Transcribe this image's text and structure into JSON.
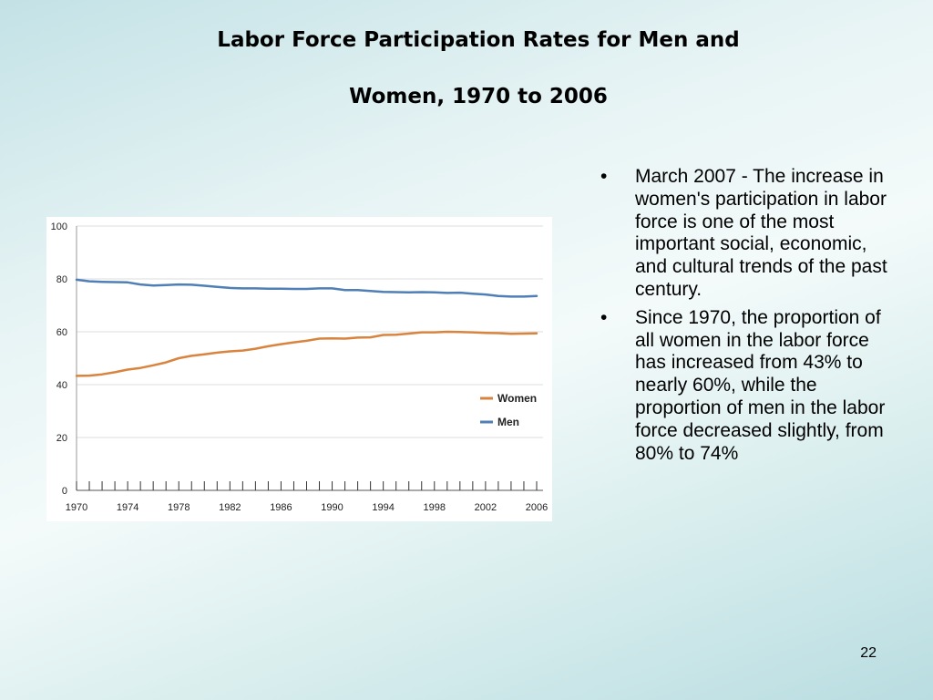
{
  "slide": {
    "title_line1": "Labor Force Participation Rates for Men and",
    "title_line2": "Women, 1970 to 2006",
    "bullets": [
      "March 2007 - The increase in women's participation in labor force is one of the most important social, economic, and cultural trends of the past century.",
      "Since 1970, the proportion of all women in the labor force has increased from 43% to nearly 60%, while the proportion of men in the labor force decreased slightly, from 80% to 74%"
    ],
    "bullet_symbol": "•",
    "page_number": "22"
  },
  "chart_data": {
    "type": "line",
    "title": "",
    "xlabel": "",
    "ylabel": "",
    "x": [
      1970,
      1971,
      1972,
      1973,
      1974,
      1975,
      1976,
      1977,
      1978,
      1979,
      1980,
      1981,
      1982,
      1983,
      1984,
      1985,
      1986,
      1987,
      1988,
      1989,
      1990,
      1991,
      1992,
      1993,
      1994,
      1995,
      1996,
      1997,
      1998,
      1999,
      2000,
      2001,
      2002,
      2003,
      2004,
      2005,
      2006
    ],
    "x_tick_labels": [
      "1970",
      "1974",
      "1978",
      "1982",
      "1986",
      "1990",
      "1994",
      "1998",
      "2002",
      "2006"
    ],
    "x_tick_values": [
      1970,
      1974,
      1978,
      1982,
      1986,
      1990,
      1994,
      1998,
      2002,
      2006
    ],
    "y_ticks": [
      0,
      20,
      40,
      60,
      80,
      100
    ],
    "xlim": [
      1970,
      2006.5
    ],
    "ylim": [
      0,
      100
    ],
    "grid": true,
    "legend_position": "right-middle",
    "series": [
      {
        "name": "Women",
        "color": "#d9843e",
        "values": [
          43.3,
          43.4,
          43.9,
          44.7,
          45.7,
          46.3,
          47.3,
          48.4,
          50.0,
          50.9,
          51.5,
          52.1,
          52.6,
          52.9,
          53.6,
          54.5,
          55.3,
          56.0,
          56.6,
          57.4,
          57.5,
          57.4,
          57.8,
          57.9,
          58.8,
          58.9,
          59.3,
          59.8,
          59.8,
          60.0,
          59.9,
          59.8,
          59.6,
          59.5,
          59.2,
          59.3,
          59.4
        ]
      },
      {
        "name": "Men",
        "color": "#4f7fb5",
        "values": [
          79.7,
          79.1,
          78.9,
          78.8,
          78.7,
          77.9,
          77.5,
          77.7,
          77.9,
          77.8,
          77.4,
          77.0,
          76.6,
          76.4,
          76.4,
          76.3,
          76.3,
          76.2,
          76.2,
          76.4,
          76.4,
          75.8,
          75.8,
          75.4,
          75.1,
          75.0,
          74.9,
          75.0,
          74.9,
          74.7,
          74.8,
          74.4,
          74.1,
          73.5,
          73.3,
          73.3,
          73.5
        ]
      }
    ]
  }
}
